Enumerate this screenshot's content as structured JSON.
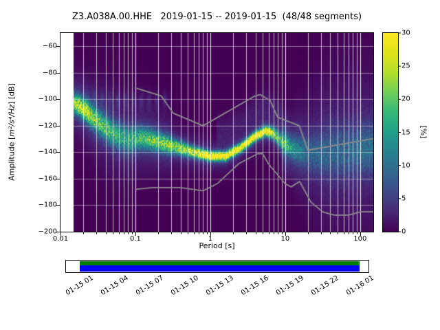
{
  "title": "Z3.A038A.00.HHE   2019-01-15 -- 2019-01-15  (48/48 segments)",
  "axes": {
    "xlabel": "Period [s]",
    "ylabel_parts": [
      "Amplitude [",
      "m²/s⁴/Hz",
      "] [dB]"
    ],
    "x_tick_values": [
      0.01,
      0.1,
      1,
      10,
      100
    ],
    "x_tick_labels": [
      "0.01",
      "0.1",
      "1",
      "10",
      "100"
    ],
    "y_tick_values": [
      -60,
      -80,
      -100,
      -120,
      -140,
      -160,
      -180,
      -200
    ],
    "y_tick_labels": [
      "−60",
      "−80",
      "−100",
      "−120",
      "−140",
      "−160",
      "−180",
      "−200"
    ],
    "xlim_s": [
      0.01,
      150
    ],
    "ylim_db": [
      -200,
      -50
    ],
    "grid_color": "#ffffff"
  },
  "colorbar": {
    "label": "[%]",
    "tick_values": [
      0,
      5,
      10,
      15,
      20,
      25,
      30
    ],
    "tick_labels": [
      "0",
      "5",
      "10",
      "15",
      "20",
      "25",
      "30"
    ],
    "range_percent": [
      0,
      30
    ],
    "gradient_stops": [
      [
        0.0,
        "#440154"
      ],
      [
        0.1,
        "#482878"
      ],
      [
        0.2,
        "#3e4989"
      ],
      [
        0.3,
        "#31688e"
      ],
      [
        0.4,
        "#26828e"
      ],
      [
        0.5,
        "#1f9e89"
      ],
      [
        0.6,
        "#35b779"
      ],
      [
        0.7,
        "#6ece58"
      ],
      [
        0.8,
        "#b5de2b"
      ],
      [
        0.9,
        "#dfe318"
      ],
      [
        1.0,
        "#fde725"
      ]
    ]
  },
  "chart_data": {
    "type": "heatmap",
    "title": "Z3.A038A.00.HHE   2019-01-15 -- 2019-01-15  (48/48 segments)",
    "xlabel": "Period [s]",
    "ylabel": "Amplitude [m²/s⁴/Hz] [dB]",
    "xlim": [
      0.01,
      150
    ],
    "ylim": [
      -200,
      -50
    ],
    "x_scale": "log",
    "grid": true,
    "colorbar_range_percent": [
      0,
      30
    ],
    "background_hex": "#440154",
    "data_period_range_s": [
      0.015,
      150
    ],
    "psd_mode_curve": {
      "periods_s": [
        0.015,
        0.02,
        0.03,
        0.05,
        0.08,
        0.12,
        0.2,
        0.35,
        0.6,
        1.0,
        1.6,
        2.5,
        4.0,
        5.5,
        7.0,
        9.0,
        12,
        20,
        40,
        80,
        150
      ],
      "db": [
        -103,
        -107,
        -116,
        -126,
        -131,
        -129,
        -132,
        -136,
        -140,
        -143,
        -143,
        -137,
        -128,
        -124,
        -126,
        -132,
        -137,
        -141,
        -140,
        -139,
        -137
      ]
    },
    "density_profile": {
      "periods_s": [
        0.015,
        0.02,
        0.03,
        0.05,
        0.08,
        0.12,
        0.2,
        0.35,
        0.6,
        1.0,
        1.6,
        2.5,
        4.0,
        5.5,
        7.0,
        9.0,
        12,
        20,
        40,
        80,
        150
      ],
      "sigma_db": [
        5,
        5,
        6,
        7,
        7,
        6,
        5,
        4,
        3,
        2.5,
        2.5,
        2.5,
        2.5,
        2.5,
        3,
        4.5,
        5,
        9,
        13,
        13,
        12
      ],
      "peak_percent": [
        18,
        22,
        18,
        14,
        13,
        15,
        18,
        20,
        24,
        30,
        30,
        28,
        30,
        30,
        24,
        15,
        10,
        6,
        6,
        6,
        7
      ]
    },
    "noise_models": {
      "color": "#8c8c8c",
      "high_db": {
        "periods_s": [
          0.1,
          0.22,
          0.32,
          0.8,
          3.8,
          4.6,
          6.3,
          7.9,
          15.4,
          20.0,
          354.8
        ],
        "db": [
          -91.5,
          -97.4,
          -110.5,
          -120.0,
          -98.0,
          -96.5,
          -101.0,
          -113.5,
          -120.0,
          -138.5,
          -126.0
        ]
      },
      "low_db": {
        "periods_s": [
          0.1,
          0.17,
          0.4,
          0.8,
          1.24,
          2.4,
          4.3,
          5.0,
          6.0,
          10.0,
          12.0,
          15.6,
          21.9,
          31.6,
          45.0,
          70.0,
          101.0,
          154.0,
          328.0
        ],
        "db": [
          -168.0,
          -166.7,
          -166.7,
          -169.2,
          -163.7,
          -148.6,
          -141.1,
          -141.1,
          -149.0,
          -163.8,
          -166.2,
          -162.1,
          -177.5,
          -185.0,
          -187.5,
          -187.5,
          -185.0,
          -185.0,
          -187.5
        ]
      }
    }
  },
  "availability": {
    "data_color": "#0000ff",
    "used_color": "#008000",
    "time_tick_labels": [
      "01-15 01",
      "01-15 04",
      "01-15 07",
      "01-15 10",
      "01-15 13",
      "01-15 16",
      "01-15 19",
      "01-15 22",
      "01-16 01"
    ]
  }
}
